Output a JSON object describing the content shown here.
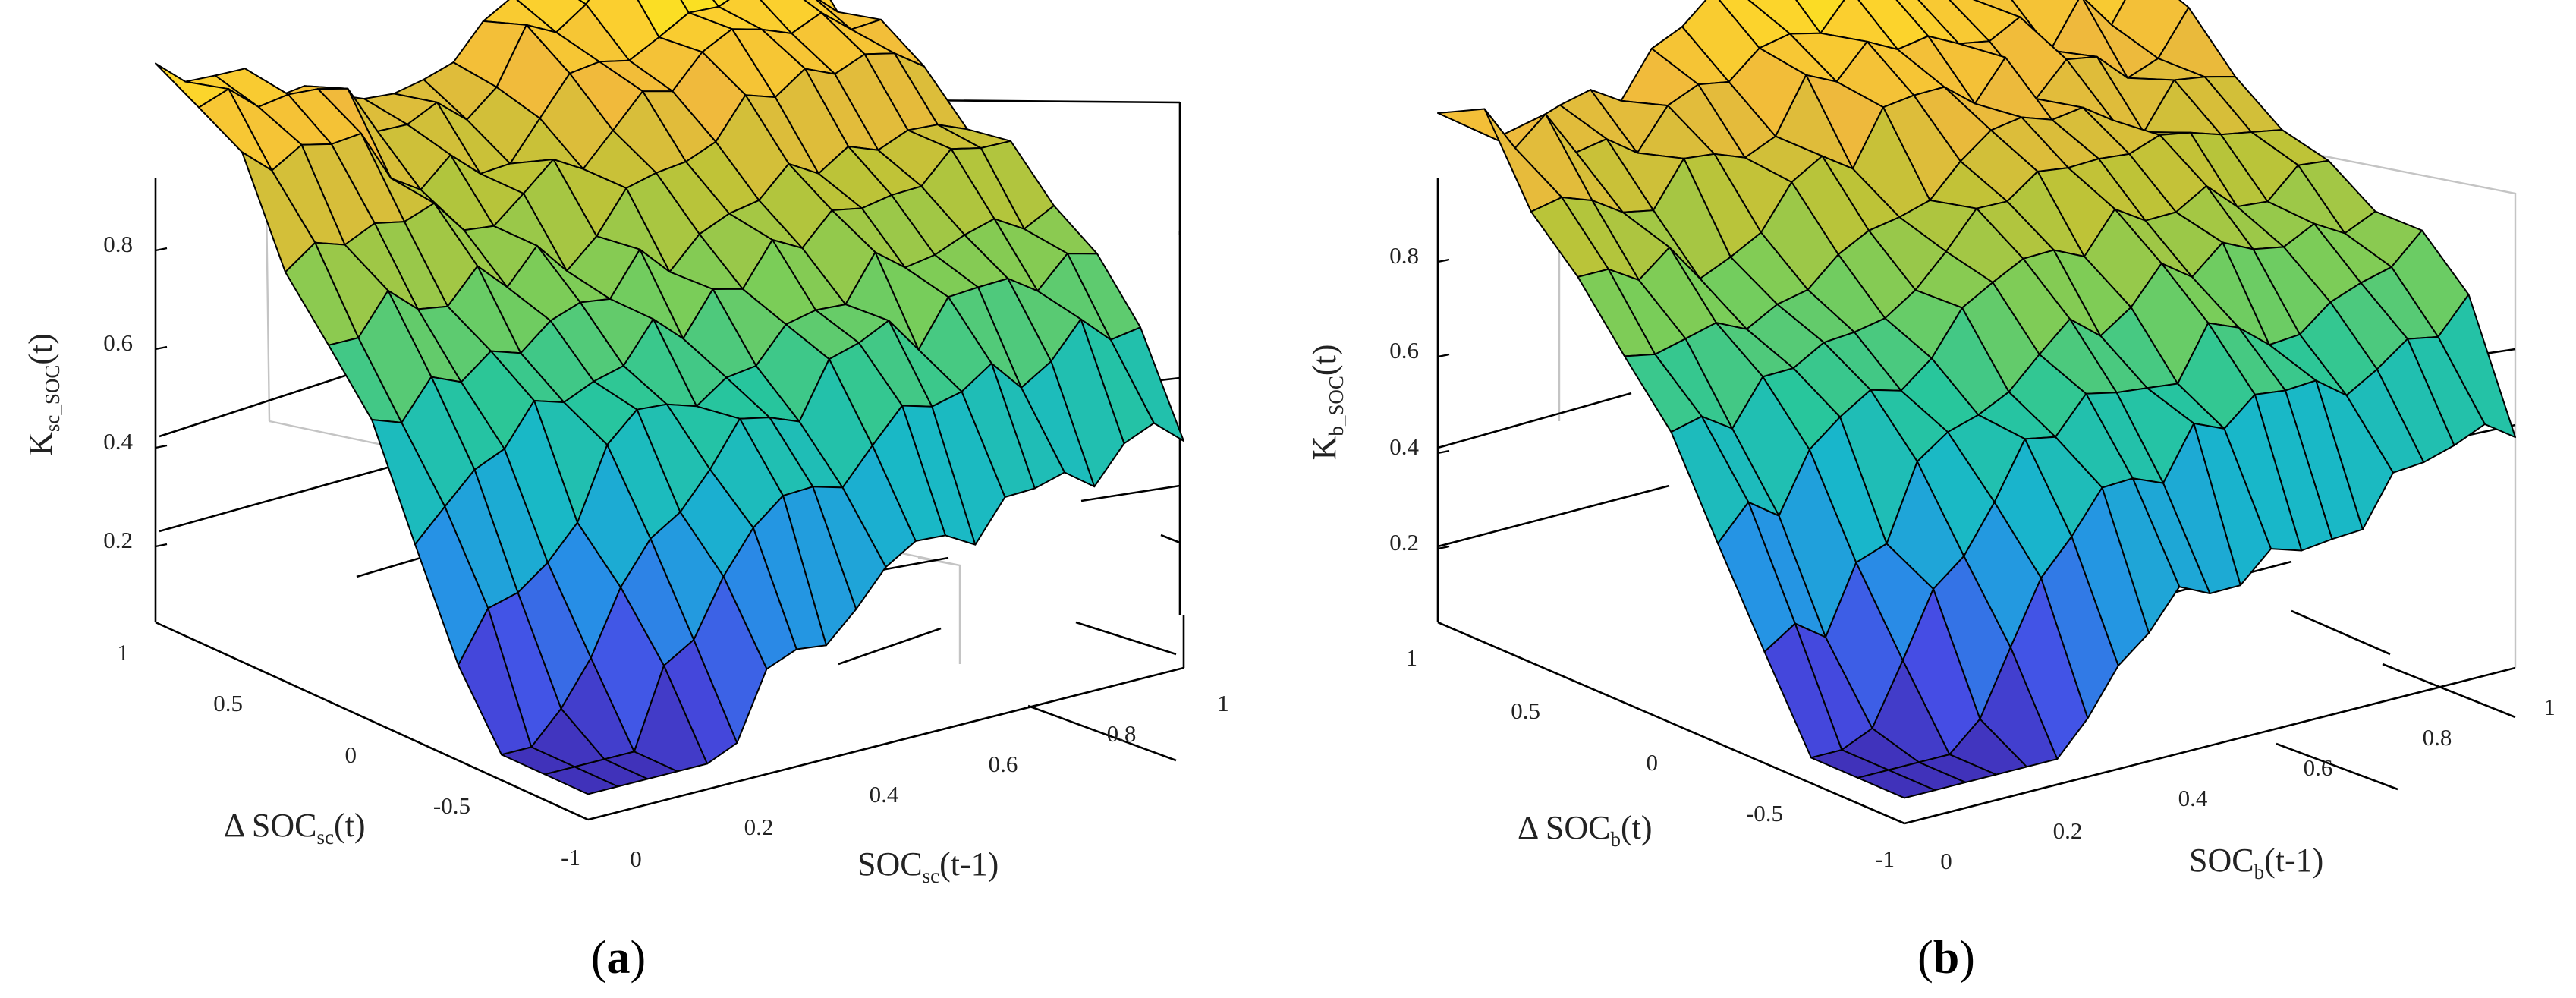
{
  "chart_data": [
    {
      "type": "surface",
      "caption": "(a)",
      "caption_letter": "a",
      "zlabel": {
        "main": "K",
        "sub": "sc_SOC",
        "rest": "(t)"
      },
      "xlabel": {
        "main": "SOC",
        "sub": "sc",
        "rest": "(t-1)"
      },
      "ylabel": {
        "main": "Δ SOC",
        "sub": "sc",
        "rest": "(t)"
      },
      "xlim": [
        0,
        1
      ],
      "ylim": [
        -1,
        1
      ],
      "zlim": [
        0,
        1
      ],
      "x_ticks": [
        "0",
        "0.2",
        "0.4",
        "0.6",
        "0.8",
        "1"
      ],
      "y_ticks": [
        "-1",
        "-0.5",
        "0",
        "0.5",
        "1"
      ],
      "z_ticks": [
        "0.2",
        "0.4",
        "0.6",
        "0.8"
      ],
      "grid": true,
      "colormap": "parula",
      "grid_size": [
        21,
        11
      ],
      "description": "Surface K_sc_SOC(t) over SOC_sc(t-1) in [0,1] and Delta SOC_sc(t) in [-1,1]; approx 0.05-0.1 near (0,-1) rising to about 0.8-0.9 for high SOC and positive Delta SOC"
    },
    {
      "type": "surface",
      "caption": "(b)",
      "caption_letter": "b",
      "zlabel": {
        "main": "K",
        "sub": "b_SOC",
        "rest": "(t)"
      },
      "xlabel": {
        "main": "SOC",
        "sub": "b",
        "rest": "(t-1)"
      },
      "ylabel": {
        "main": "Δ SOC",
        "sub": "b",
        "rest": "(t)"
      },
      "xlim": [
        0,
        1
      ],
      "ylim": [
        -1,
        1
      ],
      "zlim": [
        0,
        1
      ],
      "x_ticks": [
        "0",
        "0.2",
        "0.4",
        "0.6",
        "0.8",
        "1"
      ],
      "y_ticks": [
        "-1",
        "-0.5",
        "0",
        "0.5",
        "1"
      ],
      "z_ticks": [
        "0.2",
        "0.4",
        "0.6",
        "0.8"
      ],
      "grid": true,
      "colormap": "parula",
      "grid_size": [
        21,
        11
      ],
      "description": "Surface K_b_SOC(t) over SOC_b(t-1) in [0,1] and Delta SOC_b(t) in [-1,1]; approx 0.05-0.1 near (0,-1) rising to about 0.8-0.9 for high SOC and positive Delta SOC"
    }
  ]
}
